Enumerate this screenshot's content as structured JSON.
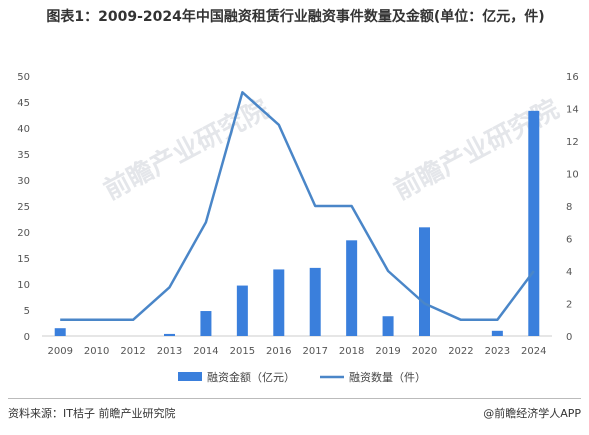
{
  "title": "图表1：2009-2024年中国融资租赁行业融资事件数量及金额(单位：亿元，件)",
  "source": "资料来源：IT桔子 前瞻产业研究院",
  "credit": "@前瞻经济学人APP",
  "watermark": "前瞻产业研究院",
  "colors": {
    "bar": "#3a7fdc",
    "line": "#4a86c8",
    "axis": "#cccccc"
  },
  "chart_data": {
    "type": "bar+line",
    "categories": [
      "2009",
      "2010",
      "2012",
      "2013",
      "2014",
      "2015",
      "2016",
      "2017",
      "2018",
      "2019",
      "2020",
      "2022",
      "2023",
      "2024"
    ],
    "series": [
      {
        "name": "融资金额（亿元）",
        "type": "bar",
        "axis": "left",
        "values": [
          1.5,
          0,
          0,
          0.4,
          4.8,
          9.7,
          12.8,
          13.1,
          18.4,
          3.8,
          20.9,
          0,
          1.0,
          43.3
        ]
      },
      {
        "name": "融资数量（件）",
        "type": "line",
        "axis": "right",
        "values": [
          1,
          1,
          1,
          3,
          7,
          15,
          13,
          8,
          8,
          4,
          2,
          1,
          1,
          4
        ]
      }
    ],
    "ylim_left": [
      0,
      50
    ],
    "yticks_left": [
      "0",
      "5",
      "10",
      "15",
      "20",
      "25",
      "30",
      "35",
      "40",
      "45",
      "50"
    ],
    "ylim_right": [
      0,
      16
    ],
    "yticks_right": [
      "0",
      "2",
      "4",
      "6",
      "8",
      "10",
      "12",
      "14",
      "16"
    ],
    "legend_position": "bottom"
  }
}
